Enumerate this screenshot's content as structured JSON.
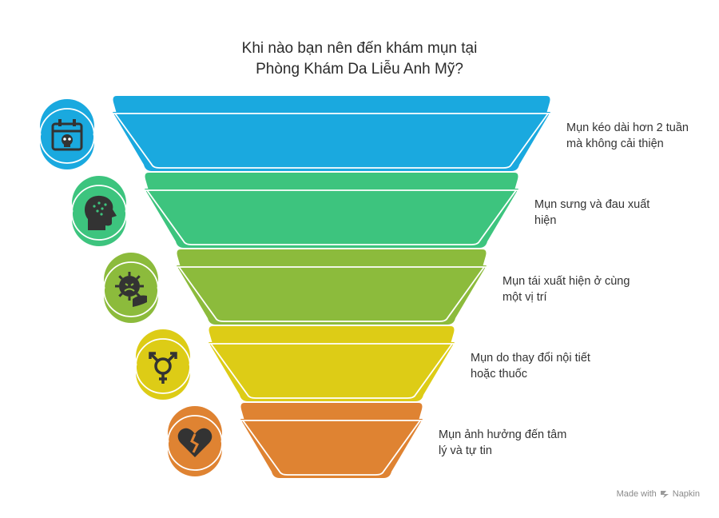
{
  "title": {
    "line1": "Khi nào bạn nên đến khám mụn tại",
    "line2": "Phòng Khám Da Liễu Anh Mỹ?"
  },
  "stages": [
    {
      "icon": "calendar-skull-icon",
      "color": "#1aa9df",
      "label_lines": [
        "Mụn kéo dài hơn 2 tuần",
        "mà không cải thiện"
      ]
    },
    {
      "icon": "acne-face-icon",
      "color": "#3dc47e",
      "label_lines": [
        "Mụn sưng và đau xuất",
        "hiện"
      ]
    },
    {
      "icon": "virus-hand-icon",
      "color": "#8cbb3c",
      "label_lines": [
        "Mụn tái xuất hiện ở cùng",
        "một vị trí"
      ]
    },
    {
      "icon": "gender-symbol-icon",
      "color": "#ddcc16",
      "label_lines": [
        "Mụn do thay đổi nội tiết",
        "hoặc thuốc"
      ]
    },
    {
      "icon": "broken-heart-icon",
      "color": "#df8332",
      "label_lines": [
        "Mụn ảnh hưởng đến tâm",
        "lý và tự tin"
      ]
    }
  ],
  "watermark": {
    "made_with": "Made with",
    "brand": "Napkin"
  }
}
